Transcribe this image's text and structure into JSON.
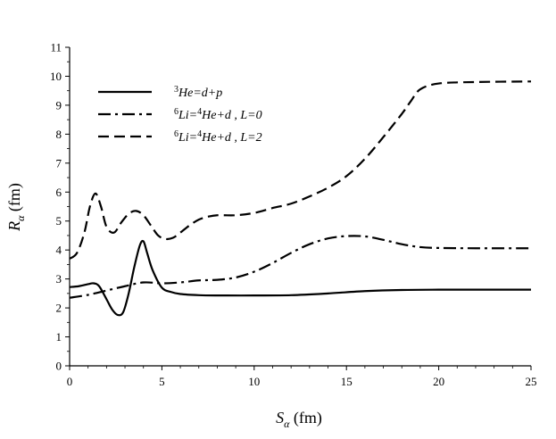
{
  "chart_data": {
    "type": "line",
    "xlabel": {
      "main": "S",
      "sub": "α",
      "unit": " (fm)"
    },
    "ylabel": {
      "main": "R",
      "sub": "α",
      "unit": " (fm)"
    },
    "xlim": [
      0,
      25
    ],
    "ylim": [
      0,
      11
    ],
    "xticks": [
      0,
      5,
      10,
      15,
      20,
      25
    ],
    "yticks": [
      0,
      1,
      2,
      3,
      4,
      5,
      6,
      7,
      8,
      9,
      10,
      11
    ],
    "grid": false,
    "legend": "top-left",
    "series": [
      {
        "legend_parts": [
          {
            "text": "3",
            "sup": true
          },
          {
            "text": "He=d+p",
            "sup": false
          }
        ],
        "style": "solid",
        "x": [
          0,
          0.5,
          1,
          1.3,
          1.6,
          2,
          2.3,
          2.6,
          2.9,
          3.2,
          3.5,
          3.8,
          4.0,
          4.2,
          4.5,
          5,
          5.5,
          6,
          7,
          8,
          10,
          12,
          14,
          16,
          18,
          20,
          22,
          25
        ],
        "y": [
          2.72,
          2.75,
          2.82,
          2.85,
          2.75,
          2.3,
          1.95,
          1.76,
          1.85,
          2.5,
          3.4,
          4.15,
          4.3,
          3.9,
          3.3,
          2.7,
          2.55,
          2.48,
          2.44,
          2.43,
          2.43,
          2.44,
          2.5,
          2.58,
          2.62,
          2.63,
          2.63,
          2.63
        ]
      },
      {
        "legend_parts": [
          {
            "text": "6",
            "sup": true
          },
          {
            "text": "Li=",
            "sup": false
          },
          {
            "text": "4",
            "sup": true
          },
          {
            "text": "He+d , L=0",
            "sup": false
          }
        ],
        "style": "dash-dot",
        "x": [
          0,
          1,
          2,
          3,
          4,
          5,
          6,
          7,
          8,
          9,
          10,
          11,
          12,
          13,
          14,
          15,
          16,
          17,
          18,
          19,
          20,
          22,
          25
        ],
        "y": [
          2.35,
          2.45,
          2.6,
          2.75,
          2.88,
          2.85,
          2.88,
          2.95,
          2.97,
          3.05,
          3.25,
          3.55,
          3.9,
          4.2,
          4.4,
          4.48,
          4.47,
          4.35,
          4.2,
          4.1,
          4.07,
          4.06,
          4.06
        ]
      },
      {
        "legend_parts": [
          {
            "text": "6",
            "sup": true
          },
          {
            "text": "Li=",
            "sup": false
          },
          {
            "text": "4",
            "sup": true
          },
          {
            "text": "He+d , L=2",
            "sup": false
          }
        ],
        "style": "dashed",
        "x": [
          0,
          0.4,
          0.8,
          1.1,
          1.4,
          1.7,
          2.0,
          2.4,
          2.8,
          3.2,
          3.6,
          4.0,
          4.4,
          4.8,
          5.2,
          5.6,
          6,
          6.5,
          7,
          7.5,
          8,
          9,
          10,
          11,
          12,
          13,
          14,
          15,
          16,
          17,
          18,
          18.5,
          19,
          20,
          22,
          25
        ],
        "y": [
          3.7,
          3.9,
          4.6,
          5.5,
          5.95,
          5.5,
          4.8,
          4.6,
          4.95,
          5.25,
          5.35,
          5.2,
          4.85,
          4.5,
          4.38,
          4.42,
          4.6,
          4.85,
          5.05,
          5.15,
          5.2,
          5.2,
          5.28,
          5.45,
          5.6,
          5.85,
          6.15,
          6.55,
          7.15,
          7.9,
          8.7,
          9.15,
          9.55,
          9.75,
          9.8,
          9.82
        ]
      }
    ]
  }
}
